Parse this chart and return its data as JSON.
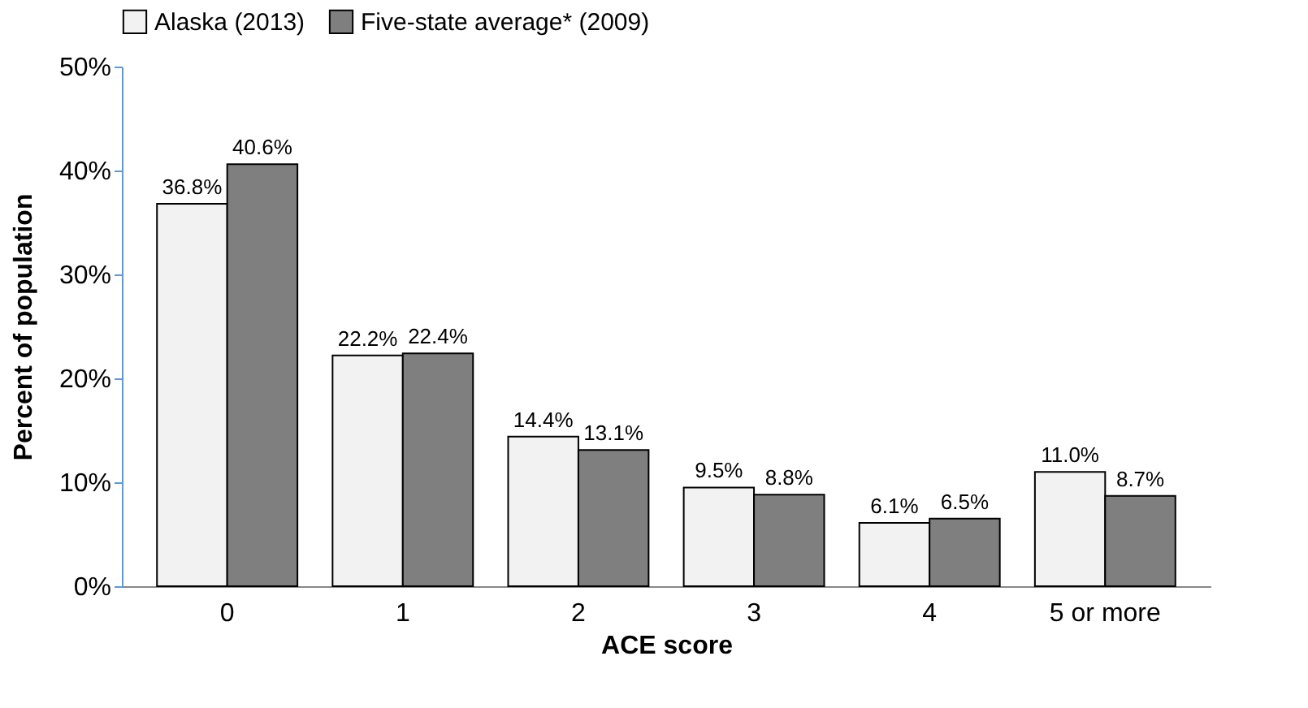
{
  "chart_data": {
    "type": "bar",
    "xlabel": "ACE score",
    "ylabel": "Percent of population",
    "categories": [
      "0",
      "1",
      "2",
      "3",
      "4",
      "5 or more"
    ],
    "series": [
      {
        "name": "Alaska (2013)",
        "color": "#f2f2f2",
        "values": [
          36.8,
          22.2,
          14.4,
          9.5,
          6.1,
          11.0
        ],
        "value_labels": [
          "36.8%",
          "22.2%",
          "14.4%",
          "9.5%",
          "6.1%",
          "11.0%"
        ]
      },
      {
        "name": "Five-state average* (2009)",
        "color": "#7f7f7f",
        "values": [
          40.6,
          22.4,
          13.1,
          8.8,
          6.5,
          8.7
        ],
        "value_labels": [
          "40.6%",
          "22.4%",
          "13.1%",
          "8.8%",
          "6.5%",
          "8.7%"
        ]
      }
    ],
    "ylim": [
      0,
      50
    ],
    "yticks": [
      {
        "value": 0,
        "label": "0%"
      },
      {
        "value": 10,
        "label": "10%"
      },
      {
        "value": 20,
        "label": "20%"
      },
      {
        "value": 30,
        "label": "30%"
      },
      {
        "value": 40,
        "label": "40%"
      },
      {
        "value": 50,
        "label": "50%"
      }
    ],
    "grid": false,
    "legend": "top"
  }
}
